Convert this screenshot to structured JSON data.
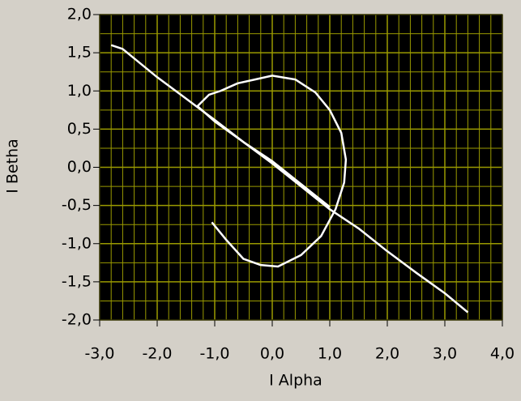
{
  "chart_data": {
    "type": "xy",
    "x_label": "I Alpha",
    "y_label": "I Betha",
    "xlim": [
      -3,
      4
    ],
    "ylim": [
      -2,
      2
    ],
    "xticks": [
      {
        "value": -3,
        "label": "-3,0"
      },
      {
        "value": -2,
        "label": "-2,0"
      },
      {
        "value": -1,
        "label": "-1,0"
      },
      {
        "value": 0,
        "label": "0,0"
      },
      {
        "value": 1,
        "label": "1,0"
      },
      {
        "value": 2,
        "label": "2,0"
      },
      {
        "value": 3,
        "label": "3,0"
      },
      {
        "value": 4,
        "label": "4,0"
      }
    ],
    "yticks": [
      {
        "value": -2,
        "label": "-2,0"
      },
      {
        "value": -1.5,
        "label": "-1,5"
      },
      {
        "value": -1,
        "label": "-1,0"
      },
      {
        "value": -0.5,
        "label": "-0,5"
      },
      {
        "value": 0,
        "label": "0,0"
      },
      {
        "value": 0.5,
        "label": "0,5"
      },
      {
        "value": 1,
        "label": "1,0"
      },
      {
        "value": 1.5,
        "label": "1,5"
      },
      {
        "value": 2,
        "label": "2,0"
      }
    ],
    "grid": true,
    "grid_color": "#9a9a00",
    "background": "#000000",
    "series": [
      {
        "color": "#ffffff",
        "x": [
          -2.8,
          -2.6,
          -2.0,
          -1.5,
          -1.0,
          -0.5,
          0.0,
          0.5,
          1.0,
          1.5,
          2.0,
          2.5,
          3.0,
          3.4
        ],
        "y": [
          1.6,
          1.55,
          1.18,
          0.9,
          0.62,
          0.33,
          0.05,
          -0.25,
          -0.55,
          -0.8,
          -1.1,
          -1.38,
          -1.65,
          -1.9
        ]
      },
      {
        "color": "#ffffff",
        "x": [
          -1.05,
          -0.8,
          -0.5,
          -0.2,
          0.1,
          0.5,
          0.85,
          1.1,
          1.25,
          1.28,
          1.2,
          1.0,
          0.75,
          0.4,
          0.0,
          -0.3,
          -0.6,
          -0.9,
          -1.1,
          -1.3,
          -1.0,
          -0.5,
          0.0,
          0.5,
          1.0
        ],
        "y": [
          -0.72,
          -0.95,
          -1.2,
          -1.28,
          -1.3,
          -1.15,
          -0.9,
          -0.55,
          -0.2,
          0.1,
          0.45,
          0.75,
          0.98,
          1.15,
          1.2,
          1.15,
          1.1,
          1.0,
          0.95,
          0.8,
          0.6,
          0.33,
          0.08,
          -0.22,
          -0.52
        ]
      }
    ]
  }
}
